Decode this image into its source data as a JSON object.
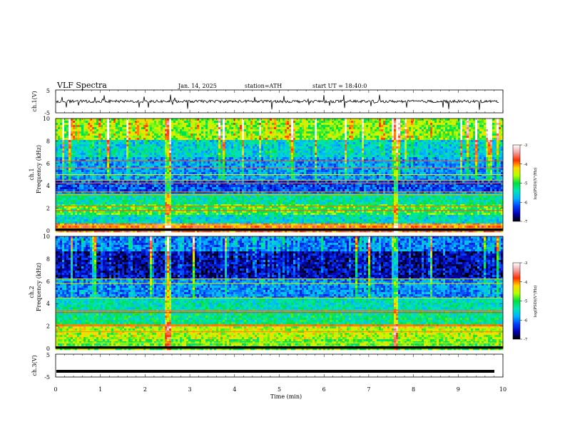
{
  "header": {
    "title": "VLF  Spectra",
    "date": "Jan. 14, 2025",
    "station": "station=ATH",
    "start": "start  UT  =   18:40:0"
  },
  "colors": {
    "colormap": [
      "#000000",
      "#0000b4",
      "#0044ff",
      "#00b4ff",
      "#00e6b4",
      "#00e040",
      "#b4ff00",
      "#ffd800",
      "#ff3000",
      "#f0a0a0",
      "#ffffff"
    ]
  },
  "chart_data": [
    {
      "id": "ch1_waveform",
      "type": "line",
      "ylabel": "ch.1(V)",
      "ylim": [
        -5,
        5
      ],
      "yticks": [
        "5",
        "-5"
      ],
      "xlim": [
        0,
        10
      ],
      "series": [
        {
          "baseline": 0,
          "noise_amplitude": 1.2,
          "spike_amplitude": 3.5
        }
      ]
    },
    {
      "id": "ch1_spectrogram",
      "type": "heatmap",
      "ylabel": "ch.1\nFrequency (kHz)",
      "ylim": [
        0,
        10
      ],
      "yticks": [
        "0",
        "2",
        "4",
        "6",
        "8",
        "10"
      ],
      "xlim": [
        0,
        10
      ],
      "colorbar": {
        "label": "log(PSD)(V²/Hz)",
        "range": [
          -7,
          -3
        ],
        "ticks": [
          "-3",
          "-4",
          "-5",
          "-6",
          "-7"
        ]
      },
      "bands": [
        {
          "from": 0.0,
          "to": 0.7,
          "level": 0.78
        },
        {
          "from": 0.7,
          "to": 1.6,
          "level": 0.38
        },
        {
          "from": 1.6,
          "to": 2.4,
          "level": 0.52
        },
        {
          "from": 2.4,
          "to": 3.4,
          "level": 0.42
        },
        {
          "from": 3.4,
          "to": 4.6,
          "level": 0.2
        },
        {
          "from": 4.6,
          "to": 6.6,
          "level": 0.28
        },
        {
          "from": 6.6,
          "to": 8.2,
          "level": 0.36
        },
        {
          "from": 8.2,
          "to": 10.0,
          "level": 0.58
        }
      ],
      "lines_khz": [
        0.2,
        0.5,
        1.8,
        2.2,
        3.2,
        3.45,
        4.25,
        4.5,
        5.0,
        5.6,
        6.2
      ],
      "events_min": [
        2.48,
        7.58
      ]
    },
    {
      "id": "ch2_spectrogram",
      "type": "heatmap",
      "ylabel": "ch.2\nFrequency (kHz)",
      "ylim": [
        0,
        10
      ],
      "yticks": [
        "0",
        "2",
        "4",
        "6",
        "8",
        "10"
      ],
      "xlim": [
        0,
        10
      ],
      "colorbar": {
        "label": "log(PSD)(V²/Hz)",
        "range": [
          -7,
          -3
        ],
        "ticks": [
          "-3",
          "-4",
          "-5",
          "-6",
          "-7"
        ]
      },
      "bands": [
        {
          "from": 0.0,
          "to": 1.0,
          "level": 0.55
        },
        {
          "from": 1.0,
          "to": 2.3,
          "level": 0.62
        },
        {
          "from": 2.3,
          "to": 3.5,
          "level": 0.44
        },
        {
          "from": 3.5,
          "to": 4.6,
          "level": 0.4
        },
        {
          "from": 4.6,
          "to": 6.3,
          "level": 0.26
        },
        {
          "from": 6.3,
          "to": 8.6,
          "level": 0.1
        },
        {
          "from": 8.6,
          "to": 10.0,
          "level": 0.24
        }
      ],
      "lines_khz": [
        0.5,
        1.5,
        2.0,
        2.1,
        3.2,
        3.4,
        4.5,
        5.8,
        6.2
      ],
      "events_min": [
        2.48,
        7.58
      ]
    },
    {
      "id": "ch3_waveform",
      "type": "line",
      "ylabel": "ch.3(V)",
      "ylim": [
        -5,
        5
      ],
      "yticks": [
        "5",
        "-5"
      ],
      "xlim": [
        0,
        10
      ],
      "xlabel": "Time  (min)",
      "xticks": [
        "0",
        "1",
        "2",
        "3",
        "4",
        "5",
        "6",
        "7",
        "8",
        "9",
        "10"
      ],
      "series": [
        {
          "baseline": -2.5,
          "noise_amplitude": 0,
          "spike_amplitude": 0
        }
      ]
    }
  ]
}
